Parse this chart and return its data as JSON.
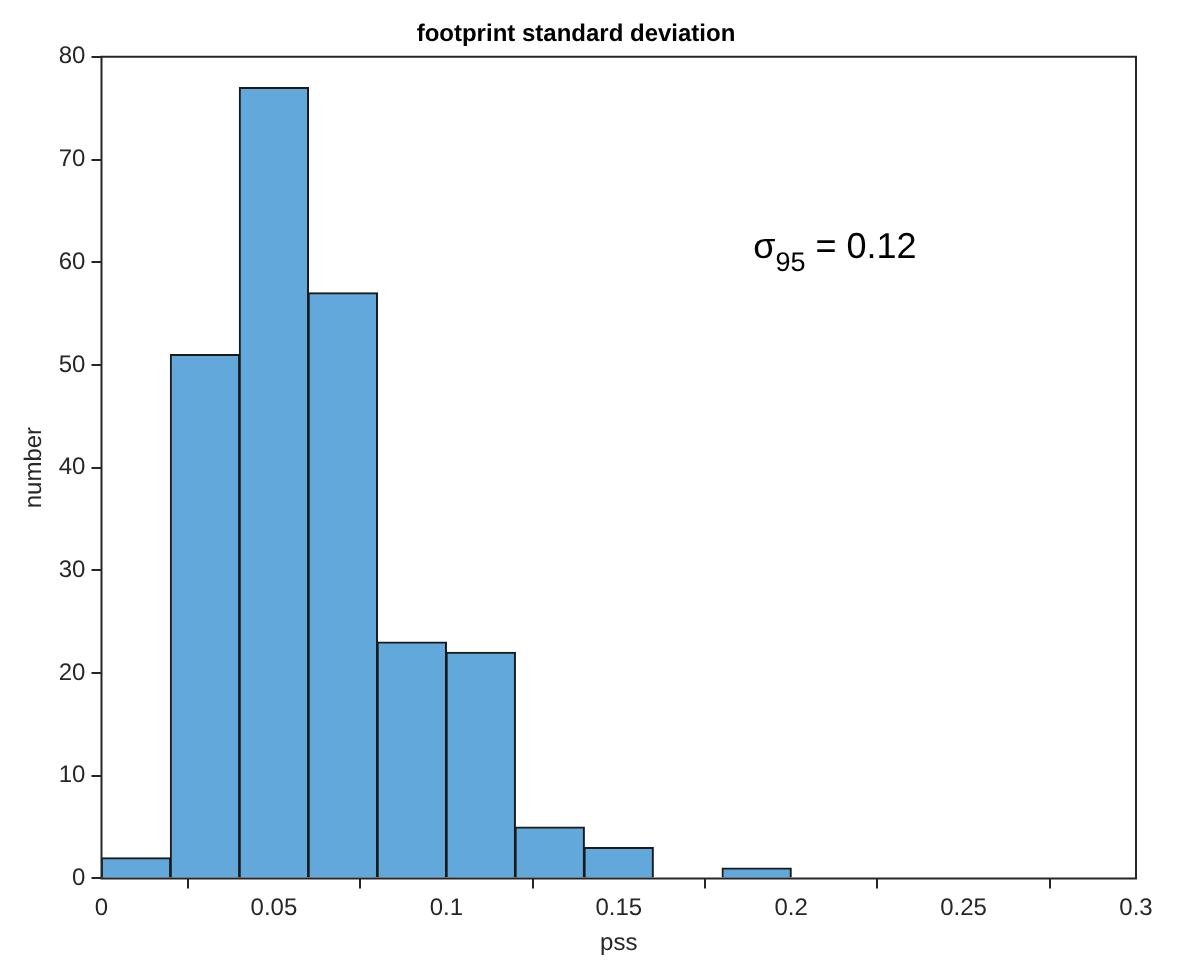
{
  "chart_data": {
    "type": "histogram",
    "title": "footprint standard deviation",
    "xlabel": "pss",
    "ylabel": "number",
    "bins": [
      0,
      0.02,
      0.04,
      0.06,
      0.08,
      0.1,
      0.12,
      0.14,
      0.16,
      0.18,
      0.2
    ],
    "values": [
      2,
      51,
      77,
      57,
      23,
      22,
      5,
      3,
      0,
      1
    ],
    "color": "#62a8da",
    "xlim": [
      0,
      0.3
    ],
    "xticks": [
      0,
      0.05,
      0.1,
      0.15,
      0.2,
      0.25,
      0.3
    ],
    "ylim": [
      0,
      80
    ],
    "yticks": [
      0,
      10,
      20,
      30,
      40,
      50,
      60,
      70,
      80
    ],
    "annotations": [
      "σ$_{95}$ = 0.12"
    ]
  }
}
